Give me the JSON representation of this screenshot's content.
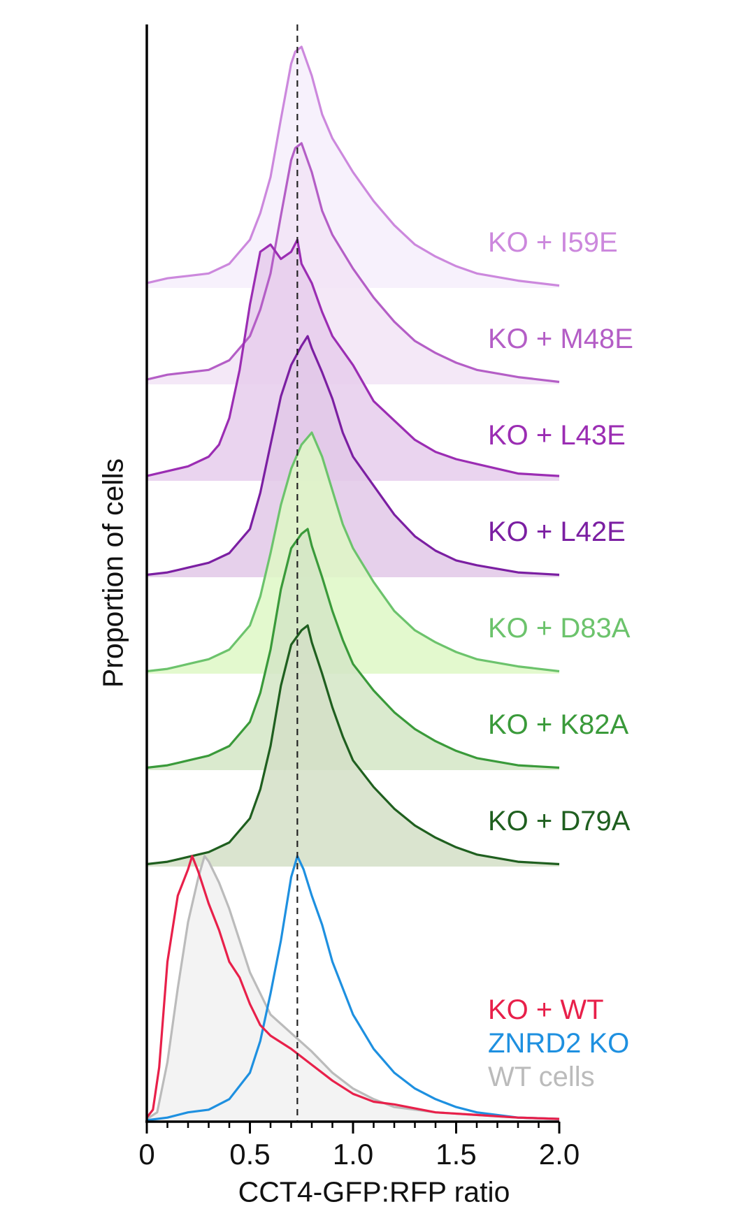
{
  "chart_data": {
    "type": "area",
    "title": "",
    "xlabel": "CCT4-GFP:RFP ratio",
    "ylabel": "Proportion of cells",
    "xlim": [
      0,
      2.0
    ],
    "xticks": [
      "0",
      "0.5",
      "1.0",
      "1.5",
      "2.0"
    ],
    "reference_line_x": 0.73,
    "stacked_series": [
      {
        "name": "KO + I59E",
        "color": "#cc88dd",
        "fill": "#f6eefb",
        "x": [
          0,
          0.1,
          0.2,
          0.3,
          0.4,
          0.5,
          0.55,
          0.6,
          0.65,
          0.7,
          0.72,
          0.75,
          0.8,
          0.85,
          0.9,
          0.95,
          1.0,
          1.1,
          1.2,
          1.3,
          1.4,
          1.5,
          1.6,
          1.8,
          2.0
        ],
        "values": [
          0.02,
          0.04,
          0.05,
          0.06,
          0.1,
          0.2,
          0.31,
          0.46,
          0.7,
          0.93,
          0.98,
          1.0,
          0.88,
          0.72,
          0.62,
          0.55,
          0.48,
          0.36,
          0.26,
          0.18,
          0.13,
          0.09,
          0.06,
          0.03,
          0.01
        ]
      },
      {
        "name": "KO + M48E",
        "color": "#b45ec6",
        "fill": "#f2e4f6",
        "x": [
          0,
          0.1,
          0.2,
          0.3,
          0.4,
          0.5,
          0.55,
          0.6,
          0.65,
          0.7,
          0.72,
          0.75,
          0.8,
          0.85,
          0.9,
          0.95,
          1.0,
          1.1,
          1.2,
          1.3,
          1.4,
          1.5,
          1.6,
          1.8,
          2.0
        ],
        "values": [
          0.02,
          0.04,
          0.05,
          0.06,
          0.1,
          0.2,
          0.31,
          0.46,
          0.7,
          0.93,
          0.98,
          1.0,
          0.88,
          0.72,
          0.62,
          0.55,
          0.48,
          0.36,
          0.26,
          0.18,
          0.13,
          0.09,
          0.06,
          0.03,
          0.01
        ]
      },
      {
        "name": "KO + L43E",
        "color": "#9b2db3",
        "fill": "#e6cdec",
        "x": [
          0,
          0.1,
          0.2,
          0.3,
          0.35,
          0.4,
          0.45,
          0.5,
          0.55,
          0.6,
          0.65,
          0.7,
          0.73,
          0.75,
          0.8,
          0.85,
          0.9,
          1.0,
          1.1,
          1.2,
          1.3,
          1.4,
          1.5,
          1.6,
          1.8,
          2.0
        ],
        "values": [
          0.02,
          0.04,
          0.06,
          0.1,
          0.15,
          0.26,
          0.46,
          0.73,
          0.95,
          0.98,
          0.92,
          0.95,
          1.0,
          0.9,
          0.82,
          0.7,
          0.6,
          0.48,
          0.33,
          0.25,
          0.17,
          0.12,
          0.09,
          0.07,
          0.03,
          0.02
        ]
      },
      {
        "name": "KO + L42E",
        "color": "#7b1fa2",
        "fill": "#e2c8e8",
        "x": [
          0,
          0.1,
          0.2,
          0.3,
          0.4,
          0.5,
          0.55,
          0.6,
          0.65,
          0.7,
          0.75,
          0.78,
          0.8,
          0.85,
          0.9,
          0.95,
          1.0,
          1.1,
          1.2,
          1.3,
          1.4,
          1.5,
          1.6,
          1.8,
          2.0
        ],
        "values": [
          0.01,
          0.02,
          0.04,
          0.06,
          0.1,
          0.2,
          0.35,
          0.55,
          0.75,
          0.88,
          0.96,
          1.0,
          0.95,
          0.85,
          0.74,
          0.6,
          0.5,
          0.38,
          0.26,
          0.17,
          0.11,
          0.07,
          0.05,
          0.02,
          0.01
        ]
      },
      {
        "name": "KO + D83A",
        "color": "#6cc36c",
        "fill": "#def8c6",
        "x": [
          0,
          0.1,
          0.2,
          0.3,
          0.4,
          0.5,
          0.55,
          0.6,
          0.65,
          0.7,
          0.75,
          0.8,
          0.85,
          0.9,
          0.95,
          1.0,
          1.1,
          1.2,
          1.3,
          1.4,
          1.5,
          1.6,
          1.8,
          2.0
        ],
        "values": [
          0.01,
          0.02,
          0.04,
          0.06,
          0.1,
          0.2,
          0.32,
          0.5,
          0.7,
          0.85,
          0.95,
          1.0,
          0.9,
          0.76,
          0.62,
          0.52,
          0.38,
          0.26,
          0.18,
          0.13,
          0.09,
          0.06,
          0.03,
          0.01
        ]
      },
      {
        "name": "KO + K82A",
        "color": "#3a9a3a",
        "fill": "#d3e6c6",
        "x": [
          0,
          0.1,
          0.2,
          0.3,
          0.4,
          0.5,
          0.55,
          0.6,
          0.65,
          0.7,
          0.75,
          0.78,
          0.8,
          0.85,
          0.9,
          0.95,
          1.0,
          1.1,
          1.2,
          1.3,
          1.4,
          1.5,
          1.6,
          1.8,
          2.0
        ],
        "values": [
          0.01,
          0.02,
          0.04,
          0.06,
          0.1,
          0.2,
          0.32,
          0.5,
          0.75,
          0.92,
          0.98,
          1.0,
          0.93,
          0.8,
          0.66,
          0.54,
          0.44,
          0.33,
          0.24,
          0.17,
          0.12,
          0.08,
          0.05,
          0.02,
          0.01
        ]
      },
      {
        "name": "KO + D79A",
        "color": "#1f5f1f",
        "fill": "#d4dfc7",
        "x": [
          0,
          0.1,
          0.2,
          0.3,
          0.4,
          0.5,
          0.55,
          0.6,
          0.65,
          0.7,
          0.75,
          0.78,
          0.8,
          0.85,
          0.9,
          0.95,
          1.0,
          1.1,
          1.2,
          1.3,
          1.4,
          1.5,
          1.6,
          1.8,
          2.0
        ],
        "values": [
          0.01,
          0.02,
          0.04,
          0.06,
          0.1,
          0.2,
          0.32,
          0.5,
          0.75,
          0.92,
          0.98,
          1.0,
          0.93,
          0.8,
          0.66,
          0.54,
          0.44,
          0.33,
          0.24,
          0.17,
          0.12,
          0.08,
          0.05,
          0.02,
          0.01
        ]
      }
    ],
    "overlay_series": [
      {
        "name": "KO + WT",
        "color": "#e8204a",
        "fill": "none",
        "x": [
          0,
          0.03,
          0.06,
          0.1,
          0.15,
          0.2,
          0.22,
          0.25,
          0.3,
          0.35,
          0.4,
          0.45,
          0.5,
          0.55,
          0.6,
          0.7,
          0.8,
          0.9,
          1.0,
          1.1,
          1.2,
          1.4,
          1.6,
          1.8,
          2.0
        ],
        "values": [
          0.01,
          0.04,
          0.2,
          0.6,
          0.85,
          0.95,
          1.0,
          0.94,
          0.82,
          0.72,
          0.6,
          0.54,
          0.44,
          0.36,
          0.32,
          0.27,
          0.21,
          0.15,
          0.1,
          0.07,
          0.06,
          0.03,
          0.02,
          0.01,
          0.005
        ]
      },
      {
        "name": "ZNRD2 KO",
        "color": "#1e90e0",
        "fill": "none",
        "x": [
          0,
          0.1,
          0.2,
          0.3,
          0.4,
          0.5,
          0.55,
          0.6,
          0.65,
          0.7,
          0.73,
          0.76,
          0.8,
          0.85,
          0.9,
          1.0,
          1.1,
          1.2,
          1.3,
          1.4,
          1.5,
          1.6,
          1.8,
          2.0
        ],
        "values": [
          0.0,
          0.01,
          0.03,
          0.04,
          0.08,
          0.18,
          0.3,
          0.48,
          0.68,
          0.92,
          1.0,
          0.95,
          0.85,
          0.74,
          0.6,
          0.4,
          0.27,
          0.18,
          0.12,
          0.08,
          0.05,
          0.03,
          0.01,
          0.005
        ]
      },
      {
        "name": "WT cells",
        "color": "#bbbbbb",
        "fill": "#f3f3f3",
        "x": [
          0,
          0.05,
          0.1,
          0.15,
          0.2,
          0.25,
          0.28,
          0.3,
          0.35,
          0.4,
          0.45,
          0.5,
          0.55,
          0.6,
          0.7,
          0.8,
          0.9,
          1.0,
          1.1,
          1.2,
          1.4,
          1.6,
          1.8,
          2.0
        ],
        "values": [
          0.005,
          0.03,
          0.22,
          0.5,
          0.75,
          0.92,
          1.0,
          0.98,
          0.9,
          0.8,
          0.68,
          0.56,
          0.48,
          0.4,
          0.33,
          0.26,
          0.18,
          0.12,
          0.08,
          0.05,
          0.03,
          0.02,
          0.01,
          0.005
        ]
      }
    ]
  }
}
